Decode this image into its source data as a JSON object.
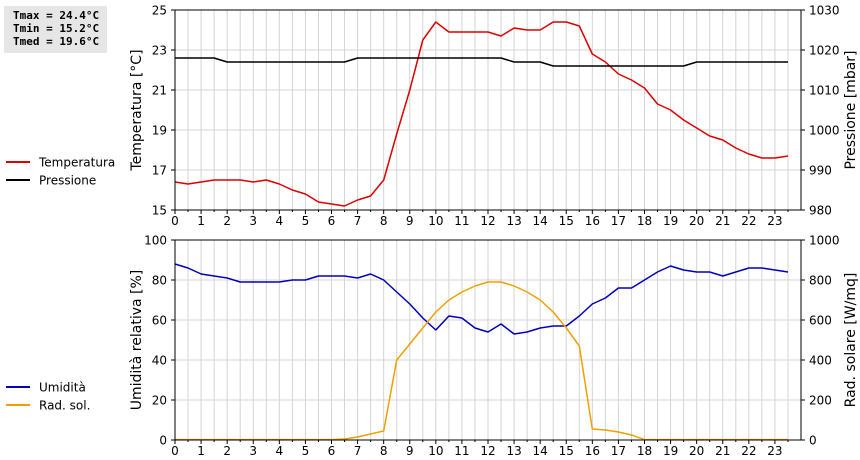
{
  "stats": {
    "tmax": "Tmax = 24.4°C",
    "tmin": "Tmin = 15.2°C",
    "tmed": "Tmed = 19.6°C"
  },
  "chart_data": [
    {
      "type": "line",
      "x_ticks": [
        "0",
        "1",
        "2",
        "3",
        "4",
        "5",
        "6",
        "7",
        "8",
        "9",
        "10",
        "11",
        "12",
        "13",
        "14",
        "15",
        "16",
        "17",
        "18",
        "19",
        "20",
        "21",
        "22",
        "23"
      ],
      "xlim": [
        0,
        24
      ],
      "ylabel_left": "Temperatura [°C]",
      "ylabel_right": "Pressione [mbar]",
      "ylim_left": [
        15,
        25
      ],
      "yticks_left": [
        "15",
        "17",
        "19",
        "21",
        "23",
        "25"
      ],
      "ylim_right": [
        980,
        1030
      ],
      "yticks_right": [
        "980",
        "990",
        "1000",
        "1010",
        "1020",
        "1030"
      ],
      "grid": true,
      "legend": "left",
      "series": [
        {
          "name": "Temperatura",
          "axis": "left",
          "color": "#dd0000",
          "x": [
            0,
            0.5,
            1,
            1.5,
            2,
            2.5,
            3,
            3.5,
            4,
            4.5,
            5,
            5.5,
            6,
            6.5,
            7,
            7.5,
            8,
            8.5,
            9,
            9.5,
            10,
            10.5,
            11,
            11.5,
            12,
            12.5,
            13,
            13.5,
            14,
            14.5,
            15,
            15.5,
            16,
            16.5,
            17,
            17.5,
            18,
            18.5,
            19,
            19.5,
            20,
            20.5,
            21,
            21.5,
            22,
            22.5,
            23,
            23.5
          ],
          "y": [
            16.4,
            16.3,
            16.4,
            16.5,
            16.5,
            16.5,
            16.4,
            16.5,
            16.3,
            16.0,
            15.8,
            15.4,
            15.3,
            15.2,
            15.5,
            15.7,
            16.5,
            18.8,
            21.0,
            23.5,
            24.4,
            23.9,
            23.9,
            23.9,
            23.9,
            23.7,
            24.1,
            24.0,
            24.0,
            24.4,
            24.4,
            24.2,
            22.8,
            22.4,
            21.8,
            21.5,
            21.1,
            20.3,
            20.0,
            19.5,
            19.1,
            18.7,
            18.5,
            18.1,
            17.8,
            17.6,
            17.6,
            17.7
          ]
        },
        {
          "name": "Pressione",
          "axis": "right",
          "color": "#000000",
          "x": [
            0,
            0.5,
            1,
            1.5,
            2,
            2.5,
            3,
            3.5,
            4,
            4.5,
            5,
            5.5,
            6,
            6.5,
            7,
            7.5,
            8,
            8.5,
            9,
            9.5,
            10,
            10.5,
            11,
            11.5,
            12,
            12.5,
            13,
            13.5,
            14,
            14.5,
            15,
            15.5,
            16,
            16.5,
            17,
            17.5,
            18,
            18.5,
            19,
            19.5,
            20,
            20.5,
            21,
            21.5,
            22,
            22.5,
            23,
            23.5
          ],
          "y": [
            1018,
            1018,
            1018,
            1018,
            1017,
            1017,
            1017,
            1017,
            1017,
            1017,
            1017,
            1017,
            1017,
            1017,
            1018,
            1018,
            1018,
            1018,
            1018,
            1018,
            1018,
            1018,
            1018,
            1018,
            1018,
            1018,
            1017,
            1017,
            1017,
            1016,
            1016,
            1016,
            1016,
            1016,
            1016,
            1016,
            1016,
            1016,
            1016,
            1016,
            1017,
            1017,
            1017,
            1017,
            1017,
            1017,
            1017,
            1017
          ]
        }
      ]
    },
    {
      "type": "line",
      "x_ticks": [
        "0",
        "1",
        "2",
        "3",
        "4",
        "5",
        "6",
        "7",
        "8",
        "9",
        "10",
        "11",
        "12",
        "13",
        "14",
        "15",
        "16",
        "17",
        "18",
        "19",
        "20",
        "21",
        "22",
        "23"
      ],
      "xlim": [
        0,
        24
      ],
      "ylabel_left": "Umidità relativa [%]",
      "ylabel_right": "Rad. solare [W/mq]",
      "ylim_left": [
        0,
        100
      ],
      "yticks_left": [
        "0",
        "20",
        "40",
        "60",
        "80",
        "100"
      ],
      "ylim_right": [
        0,
        1000
      ],
      "yticks_right": [
        "0",
        "200",
        "400",
        "600",
        "800",
        "1000"
      ],
      "grid": true,
      "legend": "left",
      "series": [
        {
          "name": "Umidità",
          "axis": "left",
          "color": "#0000bb",
          "x": [
            0,
            0.5,
            1,
            1.5,
            2,
            2.5,
            3,
            3.5,
            4,
            4.5,
            5,
            5.5,
            6,
            6.5,
            7,
            7.5,
            8,
            8.5,
            9,
            9.5,
            10,
            10.5,
            11,
            11.5,
            12,
            12.5,
            13,
            13.5,
            14,
            14.5,
            15,
            15.5,
            16,
            16.5,
            17,
            17.5,
            18,
            18.5,
            19,
            19.5,
            20,
            20.5,
            21,
            21.5,
            22,
            22.5,
            23,
            23.5
          ],
          "y": [
            88,
            86,
            83,
            82,
            81,
            79,
            79,
            79,
            79,
            80,
            80,
            82,
            82,
            82,
            81,
            83,
            80,
            74,
            68,
            61,
            55,
            62,
            61,
            56,
            54,
            58,
            53,
            54,
            56,
            57,
            57,
            62,
            68,
            71,
            76,
            76,
            80,
            84,
            87,
            85,
            84,
            84,
            82,
            84,
            86,
            86,
            85,
            84
          ]
        },
        {
          "name": "Rad. sol.",
          "axis": "right",
          "color": "#f0a000",
          "x": [
            0,
            0.5,
            1,
            1.5,
            2,
            2.5,
            3,
            3.5,
            4,
            4.5,
            5,
            5.5,
            6,
            6.5,
            7,
            7.5,
            8,
            8.5,
            9,
            9.5,
            10,
            10.5,
            11,
            11.5,
            12,
            12.5,
            13,
            13.5,
            14,
            14.5,
            15,
            15.5,
            16,
            16.5,
            17,
            17.5,
            18,
            18.5,
            19,
            19.5,
            20,
            20.5,
            21,
            21.5,
            22,
            22.5,
            23,
            23.5
          ],
          "y": [
            2,
            2,
            2,
            2,
            2,
            2,
            2,
            2,
            2,
            2,
            2,
            2,
            2,
            5,
            15,
            30,
            45,
            400,
            480,
            560,
            640,
            700,
            740,
            770,
            790,
            790,
            770,
            740,
            700,
            640,
            560,
            470,
            55,
            50,
            40,
            25,
            2,
            2,
            2,
            2,
            2,
            2,
            2,
            2,
            2,
            2,
            2,
            2
          ]
        }
      ]
    }
  ]
}
